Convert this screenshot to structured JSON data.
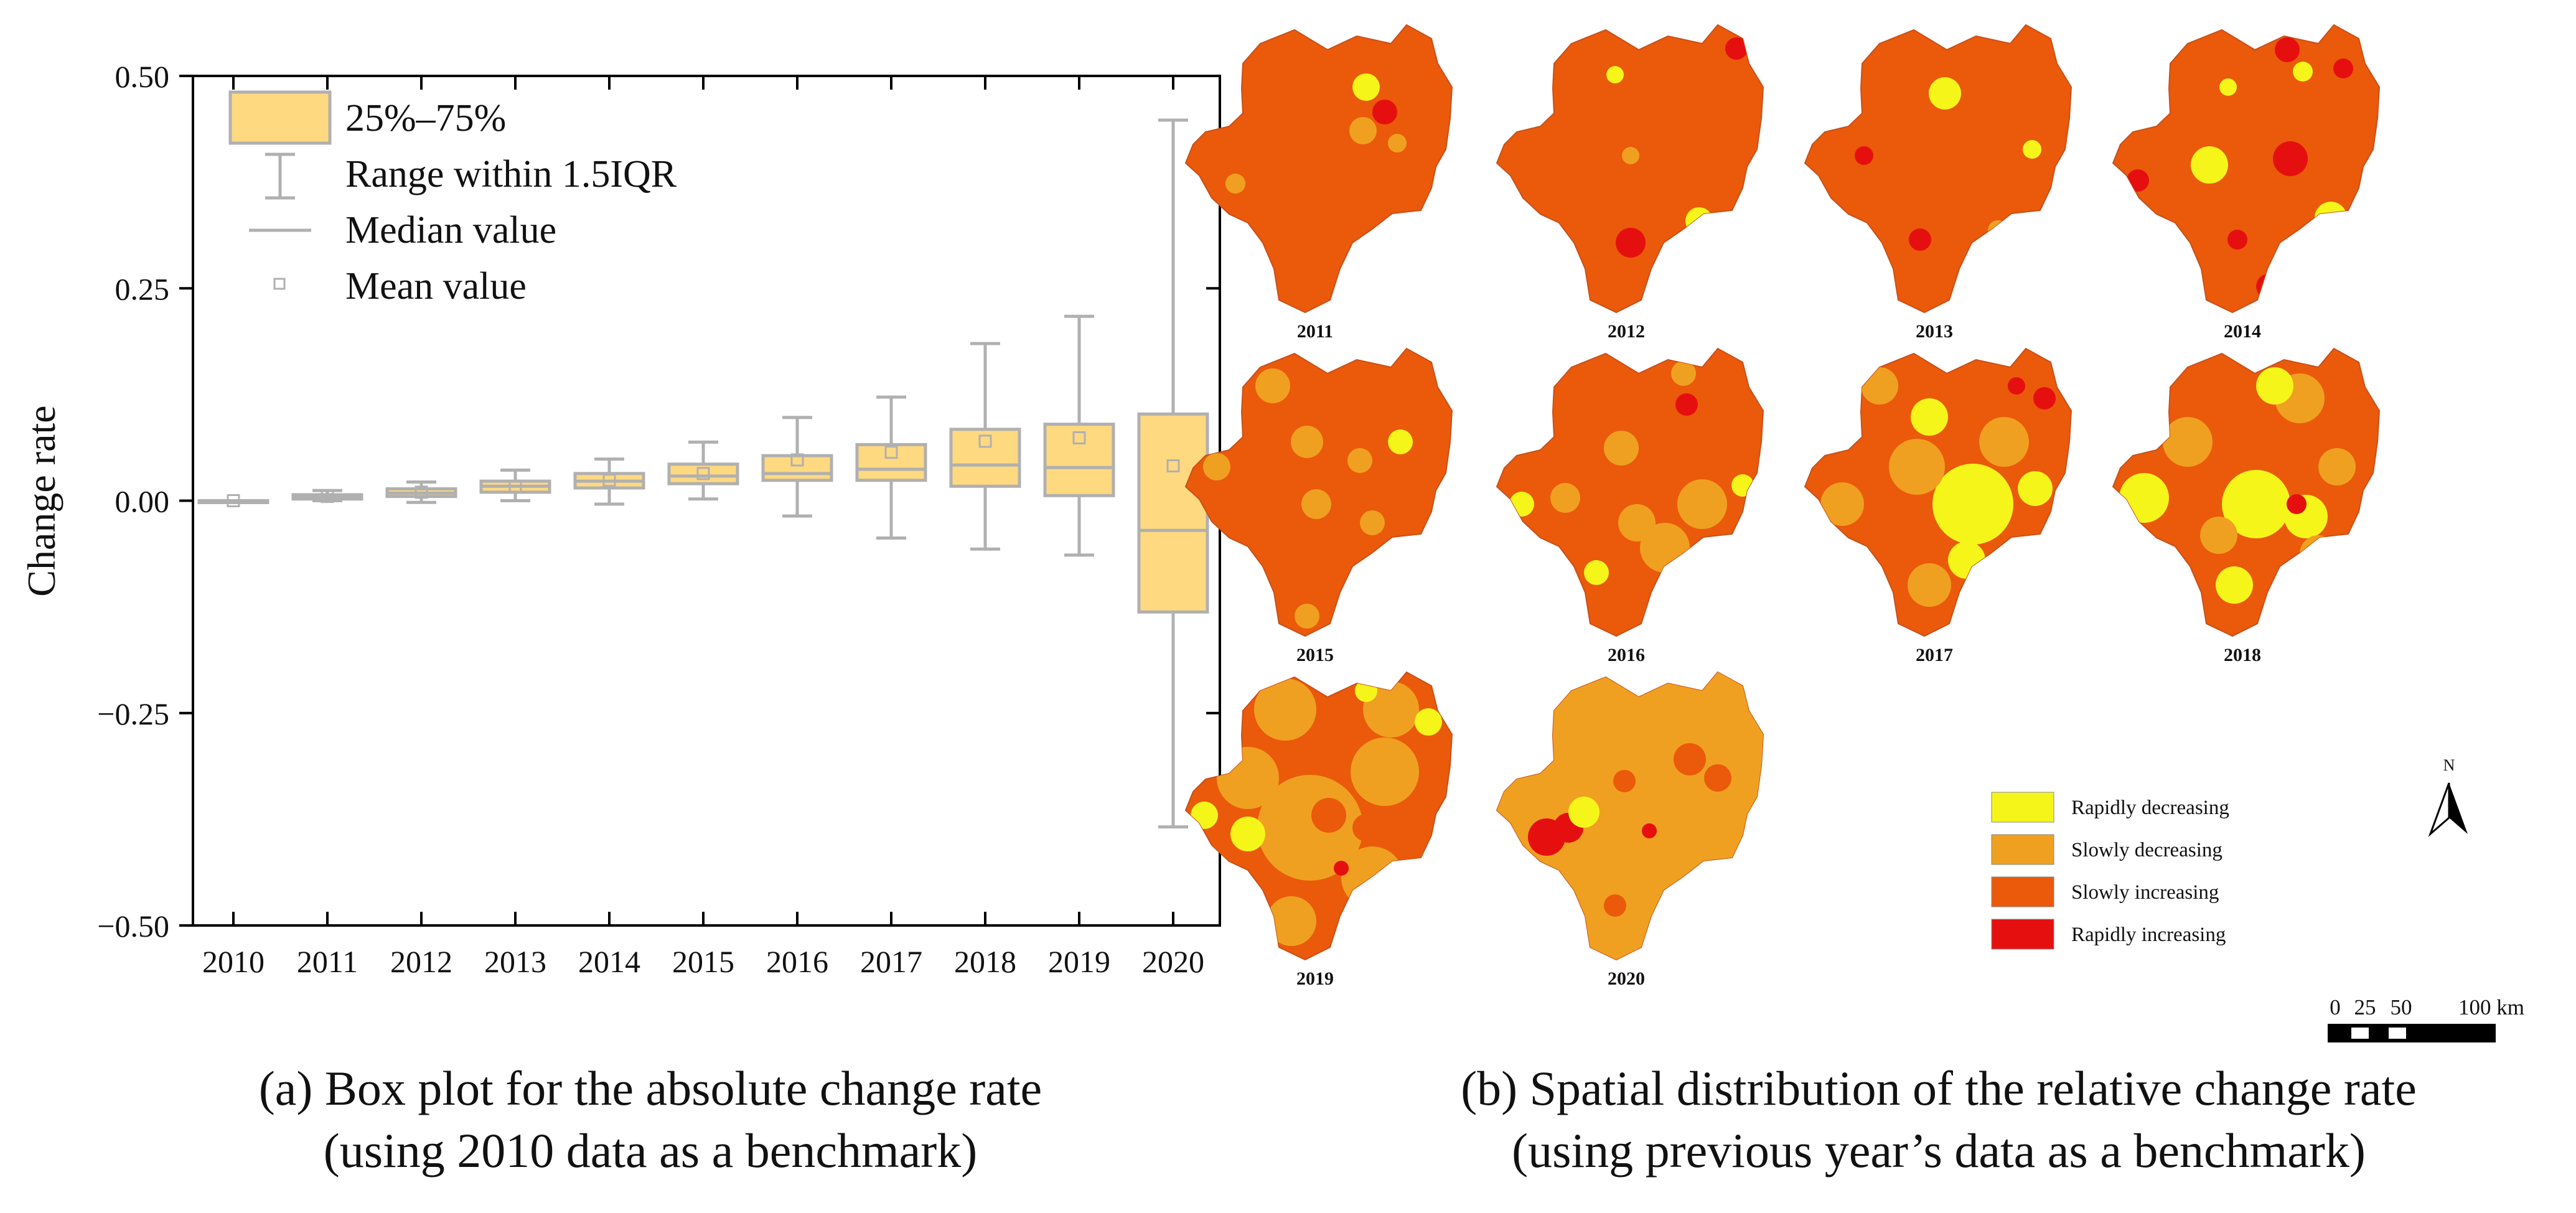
{
  "panel_a": {
    "caption_line1": "(a)  Box plot for the absolute change rate",
    "caption_line2": "(using 2010 data as a benchmark)",
    "legend": {
      "box": "25%–75%",
      "whisker": "Range within 1.5IQR",
      "median": "Median value",
      "mean": "Mean value"
    }
  },
  "panel_b": {
    "caption_line1": "(b) Spatial distribution of the relative change rate",
    "caption_line2": "(using previous year’s data as a benchmark)",
    "map_years": [
      "2011",
      "2012",
      "2013",
      "2014",
      "2015",
      "2016",
      "2017",
      "2018",
      "2019",
      "2020"
    ],
    "legend": [
      {
        "label": "Rapidly decreasing",
        "color": "#f5f51a"
      },
      {
        "label": "Slowly decreasing",
        "color": "#f0a020"
      },
      {
        "label": "Slowly increasing",
        "color": "#ea5a0a"
      },
      {
        "label": "Rapidly increasing",
        "color": "#e60f0f"
      }
    ],
    "north_label": "N",
    "scale_labels": [
      "0",
      "25",
      "50",
      "100 km"
    ]
  },
  "colors": {
    "box_fill": "#ffd980",
    "box_stroke": "#b0b0b0",
    "axis": "#000000"
  },
  "chart_data": {
    "type": "box",
    "categories": [
      "2010",
      "2011",
      "2012",
      "2013",
      "2014",
      "2015",
      "2016",
      "2017",
      "2018",
      "2019",
      "2020"
    ],
    "series": [
      {
        "category": "2010",
        "whisker_low": 0.0,
        "q1": 0.0,
        "median": 0.0,
        "q3": 0.0,
        "whisker_high": 0.0,
        "mean": 0.0
      },
      {
        "category": "2011",
        "whisker_low": 0.0,
        "q1": 0.002,
        "median": 0.004,
        "q3": 0.007,
        "whisker_high": 0.012,
        "mean": 0.005
      },
      {
        "category": "2012",
        "whisker_low": -0.002,
        "q1": 0.005,
        "median": 0.009,
        "q3": 0.014,
        "whisker_high": 0.022,
        "mean": 0.01
      },
      {
        "category": "2013",
        "whisker_low": 0.0,
        "q1": 0.01,
        "median": 0.017,
        "q3": 0.023,
        "whisker_high": 0.036,
        "mean": 0.017
      },
      {
        "category": "2014",
        "whisker_low": -0.004,
        "q1": 0.015,
        "median": 0.023,
        "q3": 0.032,
        "whisker_high": 0.049,
        "mean": 0.024
      },
      {
        "category": "2015",
        "whisker_low": 0.002,
        "q1": 0.02,
        "median": 0.029,
        "q3": 0.043,
        "whisker_high": 0.069,
        "mean": 0.032
      },
      {
        "category": "2016",
        "whisker_low": -0.018,
        "q1": 0.024,
        "median": 0.032,
        "q3": 0.053,
        "whisker_high": 0.098,
        "mean": 0.048
      },
      {
        "category": "2017",
        "whisker_low": -0.044,
        "q1": 0.024,
        "median": 0.037,
        "q3": 0.066,
        "whisker_high": 0.122,
        "mean": 0.057
      },
      {
        "category": "2018",
        "whisker_low": -0.057,
        "q1": 0.017,
        "median": 0.042,
        "q3": 0.084,
        "whisker_high": 0.185,
        "mean": 0.07
      },
      {
        "category": "2019",
        "whisker_low": -0.064,
        "q1": 0.006,
        "median": 0.039,
        "q3": 0.09,
        "whisker_high": 0.217,
        "mean": 0.074
      },
      {
        "category": "2020",
        "whisker_low": -0.384,
        "q1": -0.131,
        "median": -0.035,
        "q3": 0.102,
        "whisker_high": 0.448,
        "mean": 0.041
      }
    ],
    "ylabel": "Change rate",
    "xlabel": "",
    "title": "",
    "ylim": [
      -0.5,
      0.5
    ],
    "yticks": [
      -0.5,
      -0.25,
      0.0,
      0.25,
      0.5
    ],
    "ytick_labels": [
      "−0.50",
      "−0.25",
      "0.00",
      "0.25",
      "0.50"
    ],
    "grid": false,
    "legend_position": "top-left"
  }
}
